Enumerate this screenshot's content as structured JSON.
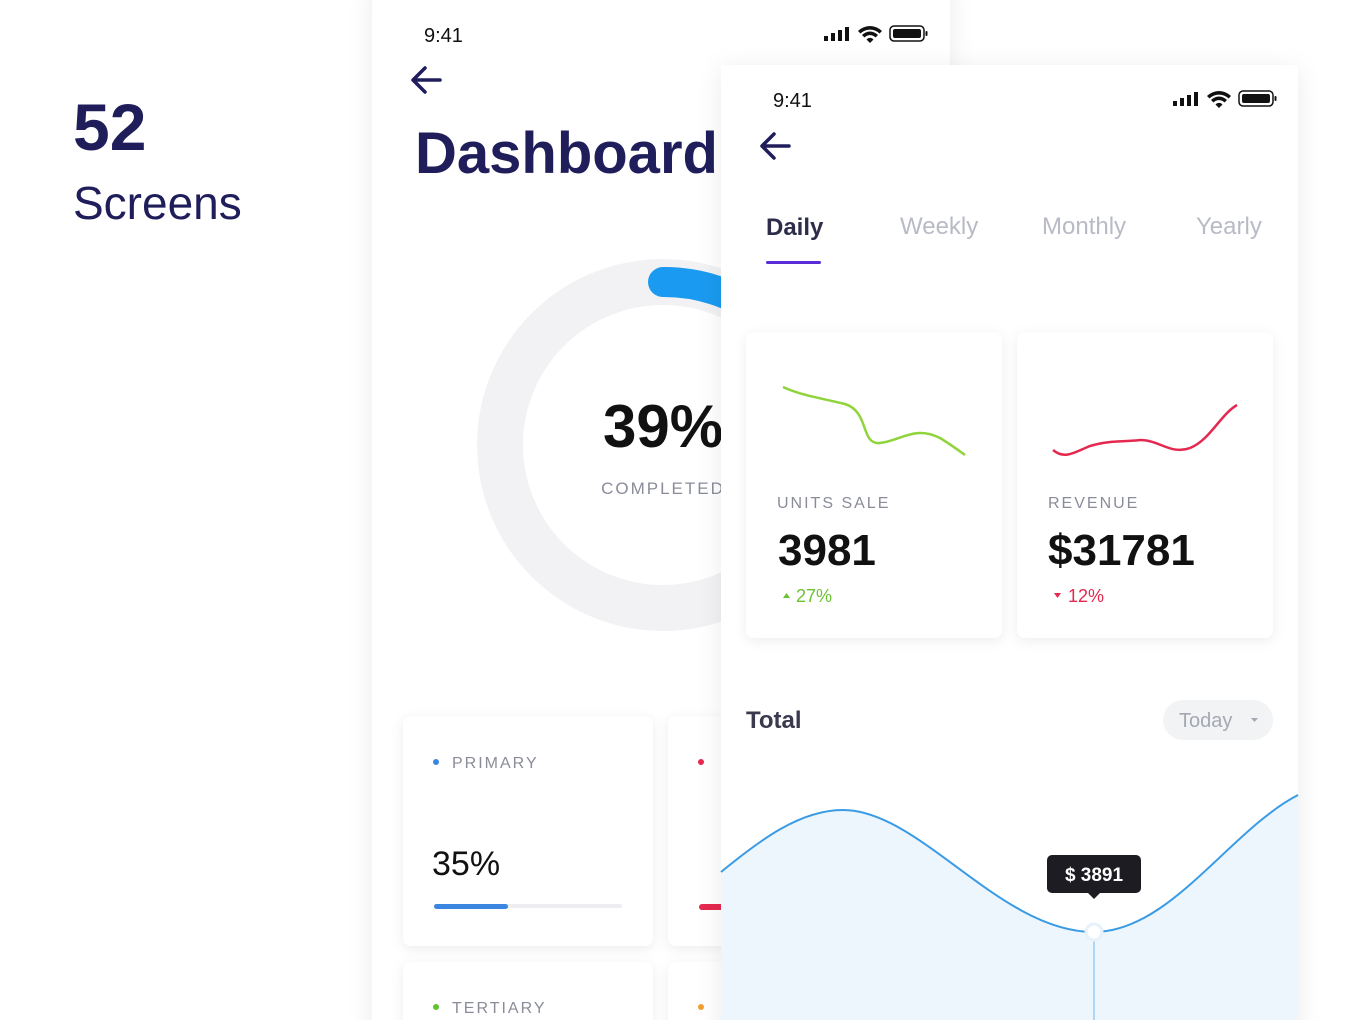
{
  "intro": {
    "count": "52",
    "caption": "Screens"
  },
  "dashboard_screen": {
    "time": "9:41",
    "title": "Dashboard",
    "progress": {
      "value": "39%",
      "caption": "COMPLETED"
    },
    "cards": [
      {
        "label": "PRIMARY",
        "value": "35%"
      },
      {
        "label": "TERTIARY"
      }
    ]
  },
  "stats_screen": {
    "time": "9:41",
    "tabs": [
      "Daily",
      "Weekly",
      "Monthly",
      "Yearly"
    ],
    "cards": [
      {
        "label": "UNITS SALE",
        "value": "3981",
        "change": "27%"
      },
      {
        "label": "REVENUE",
        "value": "$31781",
        "change": "12%"
      }
    ],
    "total": {
      "title": "Total",
      "period": "Today",
      "tooltip": "$ 3891"
    }
  }
}
